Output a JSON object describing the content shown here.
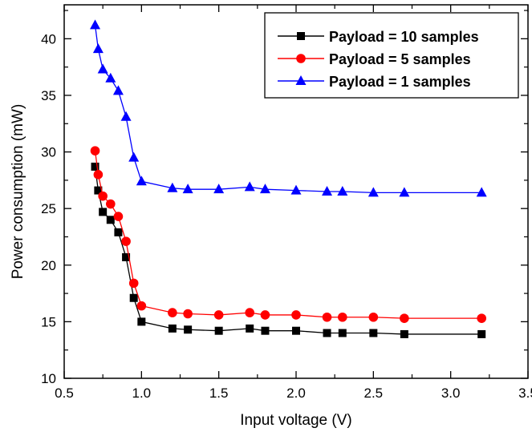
{
  "chart_data": {
    "type": "line",
    "title": "",
    "xlabel": "Input voltage (V)",
    "ylabel": "Power consumption (mW)",
    "xlim": [
      0.5,
      3.5
    ],
    "ylim": [
      10,
      43
    ],
    "xticks": [
      0.5,
      1.0,
      1.5,
      2.0,
      2.5,
      3.0,
      3.5
    ],
    "xtick_labels": [
      "0.5",
      "1.0",
      "1.5",
      "2.0",
      "2.5",
      "3.0",
      "3.5"
    ],
    "yticks": [
      10,
      15,
      20,
      25,
      30,
      35,
      40
    ],
    "ytick_labels": [
      "10",
      "15",
      "20",
      "25",
      "30",
      "35",
      "40"
    ],
    "grid": false,
    "legend_position": "top-right",
    "x": [
      0.7,
      0.72,
      0.75,
      0.8,
      0.85,
      0.9,
      0.95,
      1.0,
      1.2,
      1.3,
      1.5,
      1.7,
      1.8,
      2.0,
      2.2,
      2.3,
      2.5,
      2.7,
      3.2
    ],
    "series": [
      {
        "name": "Payload = 10 samples",
        "color": "#000000",
        "marker": "square",
        "values": [
          28.7,
          26.6,
          24.7,
          24.0,
          22.9,
          20.7,
          17.1,
          15.0,
          14.4,
          14.3,
          14.2,
          14.4,
          14.2,
          14.2,
          14.0,
          14.0,
          14.0,
          13.9,
          13.9
        ]
      },
      {
        "name": "Payload = 5 samples",
        "color": "#ff0000",
        "marker": "circle",
        "values": [
          30.1,
          28.0,
          26.1,
          25.4,
          24.3,
          22.1,
          18.4,
          16.4,
          15.8,
          15.7,
          15.6,
          15.8,
          15.6,
          15.6,
          15.4,
          15.4,
          15.4,
          15.3,
          15.3
        ]
      },
      {
        "name": "Payload = 1 samples",
        "color": "#0000ff",
        "marker": "triangle",
        "values": [
          41.2,
          39.1,
          37.3,
          36.5,
          35.4,
          33.1,
          29.5,
          27.4,
          26.8,
          26.7,
          26.7,
          26.9,
          26.7,
          26.6,
          26.5,
          26.5,
          26.4,
          26.4,
          26.4
        ]
      }
    ]
  }
}
